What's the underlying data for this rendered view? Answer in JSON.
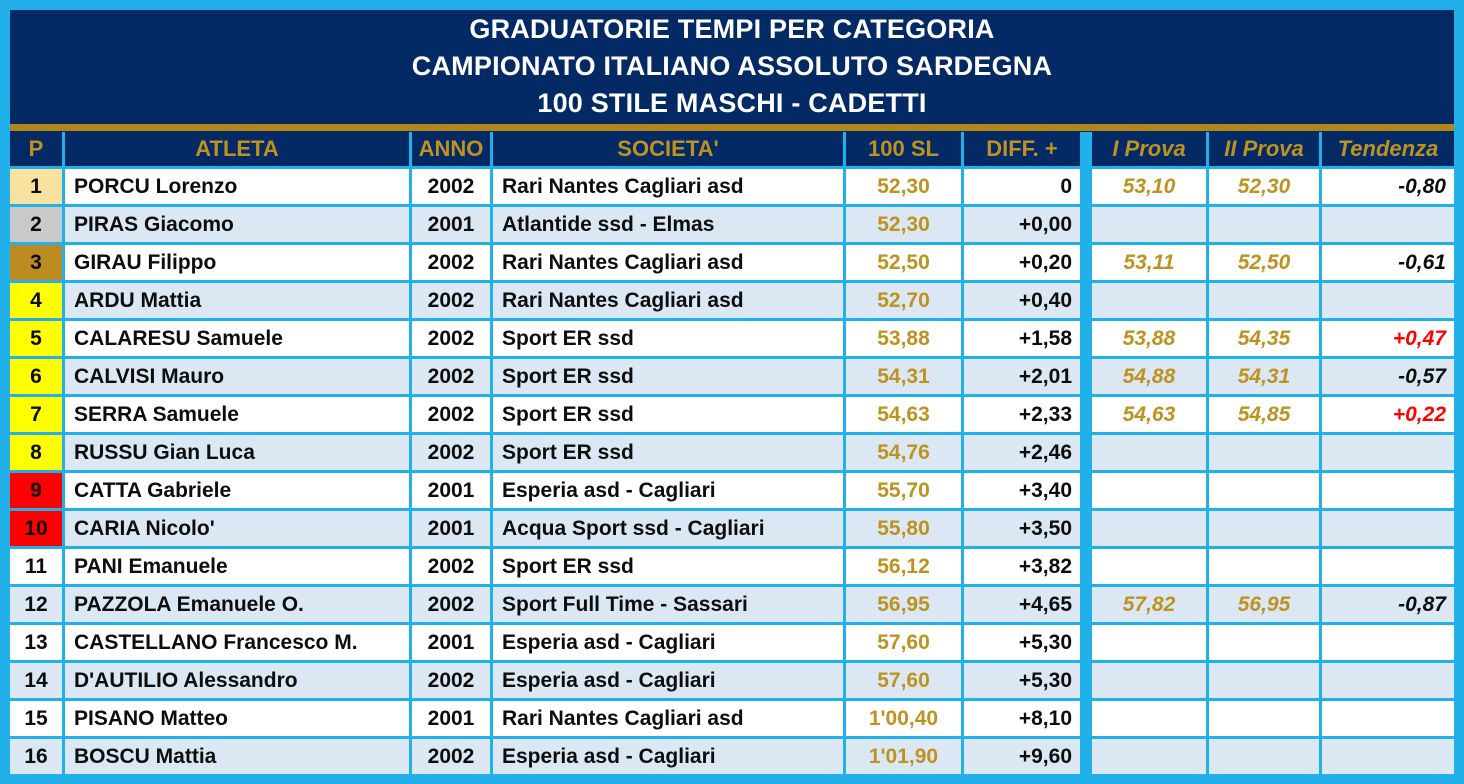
{
  "title": {
    "lines": [
      "GRADUATORIE TEMPI PER CATEGORIA",
      "CAMPIONATO ITALIANO ASSOLUTO SARDEGNA",
      "100 STILE MASCHI - CADETTI"
    ]
  },
  "colors": {
    "frame_cyan": "#22B0EA",
    "navy": "#042A66",
    "gold_text": "#BE921F",
    "gold_bar": "#B3861A",
    "row_white": "#FFFFFF",
    "row_alt_blue": "#DBE8F4",
    "rank_gold": "#F8E2A0",
    "rank_silver": "#C9C9C9",
    "rank_bronze": "#BC8B21",
    "rank_yellow": "#FFFF00",
    "rank_red": "#FF0000",
    "trend_positive_red": "#FF0000",
    "text_black": "#0D0D0D"
  },
  "columns": {
    "p": "P",
    "atleta": "ATLETA",
    "anno": "ANNO",
    "societa": "SOCIETA'",
    "sl": "100 SL",
    "diff": "DIFF. +",
    "prova1": "I Prova",
    "prova2": "II Prova",
    "tendenza": "Tendenza"
  },
  "rows": [
    {
      "p": "1",
      "rank_color": "gold",
      "atleta": "PORCU Lorenzo",
      "anno": "2002",
      "societa": "Rari Nantes Cagliari asd",
      "sl": "52,30",
      "diff": "0",
      "prova1": "53,10",
      "prova2": "52,30",
      "tendenza": "-0,80",
      "trend": "negative"
    },
    {
      "p": "2",
      "rank_color": "silver",
      "atleta": "PIRAS Giacomo",
      "anno": "2001",
      "societa": "Atlantide ssd - Elmas",
      "sl": "52,30",
      "diff": "+0,00",
      "prova1": "",
      "prova2": "",
      "tendenza": "",
      "trend": ""
    },
    {
      "p": "3",
      "rank_color": "bronze",
      "atleta": "GIRAU Filippo",
      "anno": "2002",
      "societa": "Rari Nantes Cagliari asd",
      "sl": "52,50",
      "diff": "+0,20",
      "prova1": "53,11",
      "prova2": "52,50",
      "tendenza": "-0,61",
      "trend": "negative"
    },
    {
      "p": "4",
      "rank_color": "yellow",
      "atleta": "ARDU Mattia",
      "anno": "2002",
      "societa": "Rari Nantes Cagliari asd",
      "sl": "52,70",
      "diff": "+0,40",
      "prova1": "",
      "prova2": "",
      "tendenza": "",
      "trend": ""
    },
    {
      "p": "5",
      "rank_color": "yellow",
      "atleta": "CALARESU Samuele",
      "anno": "2002",
      "societa": "Sport ER ssd",
      "sl": "53,88",
      "diff": "+1,58",
      "prova1": "53,88",
      "prova2": "54,35",
      "tendenza": "+0,47",
      "trend": "positive"
    },
    {
      "p": "6",
      "rank_color": "yellow",
      "atleta": "CALVISI Mauro",
      "anno": "2002",
      "societa": "Sport ER ssd",
      "sl": "54,31",
      "diff": "+2,01",
      "prova1": "54,88",
      "prova2": "54,31",
      "tendenza": "-0,57",
      "trend": "negative"
    },
    {
      "p": "7",
      "rank_color": "yellow",
      "atleta": "SERRA Samuele",
      "anno": "2002",
      "societa": "Sport ER ssd",
      "sl": "54,63",
      "diff": "+2,33",
      "prova1": "54,63",
      "prova2": "54,85",
      "tendenza": "+0,22",
      "trend": "positive"
    },
    {
      "p": "8",
      "rank_color": "yellow",
      "atleta": "RUSSU Gian Luca",
      "anno": "2002",
      "societa": "Sport ER ssd",
      "sl": "54,76",
      "diff": "+2,46",
      "prova1": "",
      "prova2": "",
      "tendenza": "",
      "trend": ""
    },
    {
      "p": "9",
      "rank_color": "red",
      "atleta": "CATTA Gabriele",
      "anno": "2001",
      "societa": "Esperia asd - Cagliari",
      "sl": "55,70",
      "diff": "+3,40",
      "prova1": "",
      "prova2": "",
      "tendenza": "",
      "trend": ""
    },
    {
      "p": "10",
      "rank_color": "red",
      "atleta": "CARIA Nicolo'",
      "anno": "2001",
      "societa": "Acqua Sport ssd - Cagliari",
      "sl": "55,80",
      "diff": "+3,50",
      "prova1": "",
      "prova2": "",
      "tendenza": "",
      "trend": ""
    },
    {
      "p": "11",
      "rank_color": "none",
      "atleta": "PANI Emanuele",
      "anno": "2002",
      "societa": "Sport ER ssd",
      "sl": "56,12",
      "diff": "+3,82",
      "prova1": "",
      "prova2": "",
      "tendenza": "",
      "trend": ""
    },
    {
      "p": "12",
      "rank_color": "none",
      "atleta": "PAZZOLA Emanuele O.",
      "anno": "2002",
      "societa": "Sport Full Time - Sassari",
      "sl": "56,95",
      "diff": "+4,65",
      "prova1": "57,82",
      "prova2": "56,95",
      "tendenza": "-0,87",
      "trend": "negative"
    },
    {
      "p": "13",
      "rank_color": "none",
      "atleta": "CASTELLANO Francesco M.",
      "anno": "2001",
      "societa": "Esperia asd - Cagliari",
      "sl": "57,60",
      "diff": "+5,30",
      "prova1": "",
      "prova2": "",
      "tendenza": "",
      "trend": ""
    },
    {
      "p": "14",
      "rank_color": "none",
      "atleta": "D'AUTILIO Alessandro",
      "anno": "2002",
      "societa": "Esperia asd - Cagliari",
      "sl": "57,60",
      "diff": "+5,30",
      "prova1": "",
      "prova2": "",
      "tendenza": "",
      "trend": ""
    },
    {
      "p": "15",
      "rank_color": "none",
      "atleta": "PISANO Matteo",
      "anno": "2001",
      "societa": "Rari Nantes Cagliari asd",
      "sl": "1'00,40",
      "diff": "+8,10",
      "prova1": "",
      "prova2": "",
      "tendenza": "",
      "trend": ""
    },
    {
      "p": "16",
      "rank_color": "none",
      "atleta": "BOSCU Mattia",
      "anno": "2002",
      "societa": "Esperia asd - Cagliari",
      "sl": "1'01,90",
      "diff": "+9,60",
      "prova1": "",
      "prova2": "",
      "tendenza": "",
      "trend": ""
    }
  ]
}
